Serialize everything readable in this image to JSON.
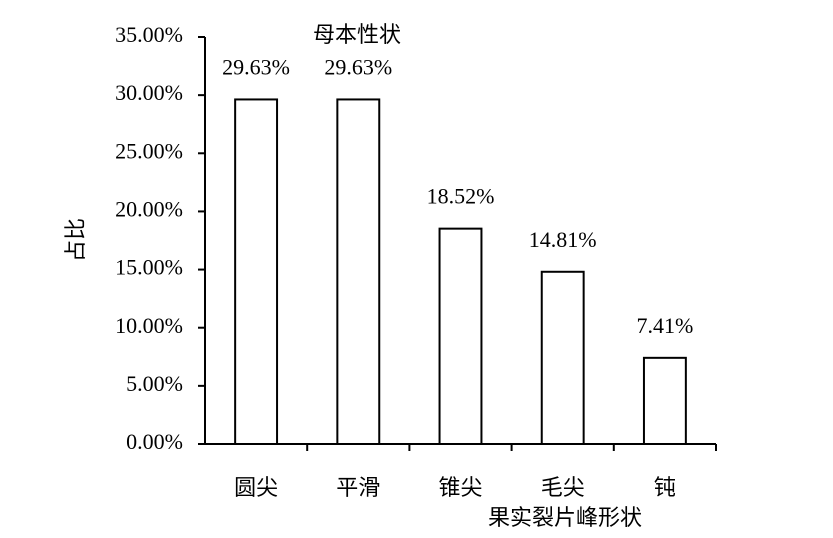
{
  "chart_data": {
    "type": "bar",
    "title": "母本性状",
    "xlabel": "果实裂片峰形状",
    "ylabel": "占比",
    "categories": [
      "圆尖",
      "平滑",
      "锥尖",
      "毛尖",
      "钝"
    ],
    "values": [
      29.63,
      29.63,
      18.52,
      14.81,
      7.41
    ],
    "value_labels": [
      "29.63%",
      "29.63%",
      "18.52%",
      "14.81%",
      "7.41%"
    ],
    "color": "#ffffff",
    "ylim": [
      0,
      35
    ],
    "yticks": [
      {
        "value": 0,
        "label": "0.00%"
      },
      {
        "value": 5,
        "label": "5.00%"
      },
      {
        "value": 10,
        "label": "10.00%"
      },
      {
        "value": 15,
        "label": "15.00%"
      },
      {
        "value": 20,
        "label": "20.00%"
      },
      {
        "value": 25,
        "label": "25.00%"
      },
      {
        "value": 30,
        "label": "30.00%"
      },
      {
        "value": 35,
        "label": "35.00%"
      }
    ],
    "grid": false
  }
}
